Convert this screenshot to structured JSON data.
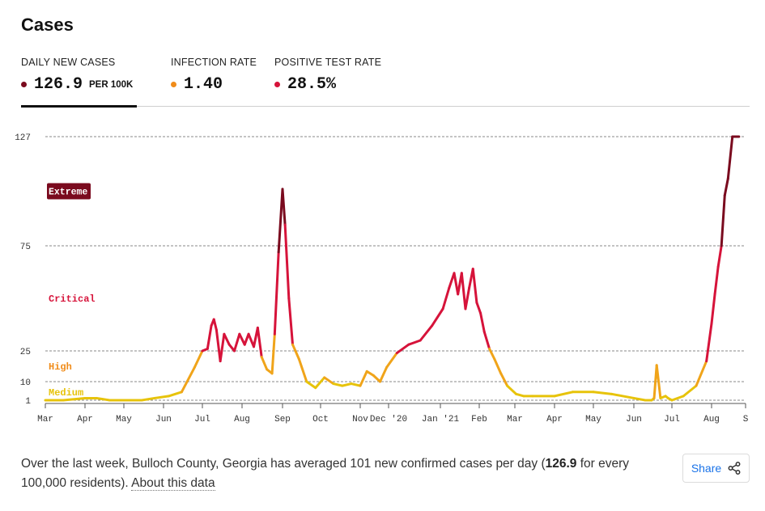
{
  "title": "Cases",
  "tabs": [
    {
      "label": "DAILY NEW CASES",
      "value": "126.9",
      "unit": "PER 100K",
      "dot_color": "#7a0a1e"
    },
    {
      "label": "INFECTION RATE",
      "value": "1.40",
      "unit": "",
      "dot_color": "#f08c1a"
    },
    {
      "label": "POSITIVE TEST RATE",
      "value": "28.5%",
      "unit": "",
      "dot_color": "#d6133a"
    }
  ],
  "caption": {
    "text_before": "Over the last week, Bulloch County, Georgia has averaged 101 new confirmed cases per day (",
    "highlight": "126.9",
    "text_after": " for every 100,000 residents).",
    "link": "About this data"
  },
  "share": {
    "label": "Share",
    "icon": "share-icon"
  },
  "chart_data": {
    "type": "line",
    "title": "",
    "xlabel": "",
    "ylabel": "",
    "x_tick_labels": [
      "Mar",
      "Apr",
      "May",
      "Jun",
      "Jul",
      "Aug",
      "Sep",
      "Oct",
      "Nov",
      "Dec '20",
      "Jan '21",
      "Feb",
      "Mar",
      "Apr",
      "May",
      "Jun",
      "Jul",
      "Aug",
      "S"
    ],
    "y_ticks": [
      1,
      10,
      25,
      75,
      127
    ],
    "ylim": [
      0,
      127
    ],
    "grid": "horizontal dashed",
    "levels": [
      {
        "name": "Medium",
        "color": "#e7c30a",
        "y_label_at": 5
      },
      {
        "name": "High",
        "color": "#f08c1a",
        "y_label_at": 17.5
      },
      {
        "name": "Critical",
        "color": "#d6133a",
        "y_label_at": 50
      },
      {
        "name": "Extreme",
        "color": "#7a0a1e",
        "y_label_at": 101
      }
    ],
    "series": [
      {
        "x": [
          "2020-03-01",
          "2020-03-15",
          "2020-04-01",
          "2020-04-10",
          "2020-04-20",
          "2020-05-01",
          "2020-05-15",
          "2020-05-25",
          "2020-06-05",
          "2020-06-15",
          "2020-06-25",
          "2020-07-01",
          "2020-07-05",
          "2020-07-08",
          "2020-07-10",
          "2020-07-12",
          "2020-07-15",
          "2020-07-18",
          "2020-07-22",
          "2020-07-26",
          "2020-07-30",
          "2020-08-03",
          "2020-08-06",
          "2020-08-10",
          "2020-08-13",
          "2020-08-16",
          "2020-08-20",
          "2020-08-24",
          "2020-08-26",
          "2020-08-29",
          "2020-09-01",
          "2020-09-03",
          "2020-09-06",
          "2020-09-09",
          "2020-09-14",
          "2020-09-20",
          "2020-09-27",
          "2020-10-04",
          "2020-10-11",
          "2020-10-18",
          "2020-10-25",
          "2020-11-01",
          "2020-11-08",
          "2020-11-15",
          "2020-11-22",
          "2020-11-29",
          "2020-12-06",
          "2020-12-13",
          "2020-12-20",
          "2020-12-27",
          "2021-01-03",
          "2021-01-08",
          "2021-01-12",
          "2021-01-15",
          "2021-01-18",
          "2021-01-21",
          "2021-01-24",
          "2021-01-27",
          "2021-01-30",
          "2021-02-02",
          "2021-02-05",
          "2021-02-09",
          "2021-02-13",
          "2021-02-18",
          "2021-02-23",
          "2021-03-02",
          "2021-03-08",
          "2021-03-15",
          "2021-04-01",
          "2021-04-15",
          "2021-05-01",
          "2021-05-15",
          "2021-06-01",
          "2021-06-10",
          "2021-06-15",
          "2021-06-17",
          "2021-06-19",
          "2021-06-22",
          "2021-06-26",
          "2021-06-28",
          "2021-07-01",
          "2021-07-10",
          "2021-07-20",
          "2021-07-28",
          "2021-08-01",
          "2021-08-04",
          "2021-08-07",
          "2021-08-10",
          "2021-08-13",
          "2021-08-16",
          "2021-08-20",
          "2021-08-23",
          "2021-08-26"
        ],
        "y": [
          1,
          1,
          2,
          2,
          1,
          1,
          1,
          2,
          3,
          5,
          17,
          25,
          26,
          37,
          40,
          35,
          20,
          33,
          28,
          25,
          33,
          28,
          33,
          27,
          36,
          22,
          16,
          14,
          33,
          72,
          102,
          85,
          50,
          28,
          21,
          10,
          7,
          12,
          9,
          8,
          9,
          8,
          15,
          13,
          10,
          17,
          24,
          28,
          30,
          37,
          45,
          55,
          62,
          52,
          62,
          45,
          55,
          64,
          48,
          43,
          34,
          26,
          21,
          14,
          8,
          4,
          3,
          3,
          3,
          5,
          5,
          4,
          2,
          1,
          1,
          2,
          18,
          2,
          3,
          2,
          1,
          3,
          8,
          20,
          38,
          52,
          65,
          75,
          99,
          107,
          127,
          127,
          127
        ]
      }
    ]
  }
}
